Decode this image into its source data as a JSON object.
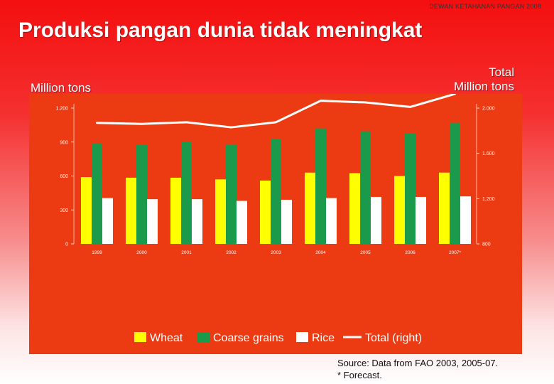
{
  "header_note": "DEWAN KETAHANAN PANGAN 2008",
  "title": "Produksi pangan dunia tidak meningkat",
  "left_axis_unit": "Million tons",
  "right_axis_unit_line1": "Total",
  "right_axis_unit_line2": "Million tons",
  "source_line1": "Source:  Data from FAO 2003, 2005-07.",
  "source_line2": "* Forecast.",
  "colors": {
    "panel": "#ec3a12",
    "wheat": "#ffff00",
    "coarse_grains": "#1a9a4a",
    "rice": "#ffffff",
    "total": "#ffffff"
  },
  "chart_data": {
    "type": "bar",
    "categories": [
      "1999",
      "2000",
      "2001",
      "2002",
      "2003",
      "2004",
      "2005",
      "2006",
      "2007*"
    ],
    "series": [
      {
        "name": "Wheat",
        "axis": "left",
        "values": [
          590,
          585,
          585,
          570,
          560,
          630,
          625,
          600,
          630
        ]
      },
      {
        "name": "Coarse grains",
        "axis": "left",
        "values": [
          885,
          875,
          905,
          880,
          930,
          1020,
          995,
          980,
          1070
        ]
      },
      {
        "name": "Rice",
        "axis": "left",
        "values": [
          405,
          395,
          395,
          380,
          390,
          405,
          415,
          415,
          420
        ]
      },
      {
        "name": "Total (right)",
        "type": "line",
        "axis": "right",
        "values": [
          1870,
          1860,
          1875,
          1830,
          1875,
          2065,
          2050,
          2010,
          2125
        ]
      }
    ],
    "y_left": {
      "ticks": [
        "0",
        "300",
        "600",
        "900",
        "1.200"
      ],
      "tick_values": [
        0,
        300,
        600,
        900,
        1200
      ],
      "lim": [
        0,
        1200
      ]
    },
    "y_right": {
      "ticks": [
        "800",
        "1.200",
        "1.600",
        "2.000"
      ],
      "tick_values": [
        800,
        1200,
        1600,
        2000
      ],
      "lim": [
        800,
        2000
      ]
    },
    "legend": [
      "Wheat",
      "Coarse grains",
      "Rice",
      "Total (right)"
    ],
    "legend_placement": "bottom",
    "grid": false
  }
}
